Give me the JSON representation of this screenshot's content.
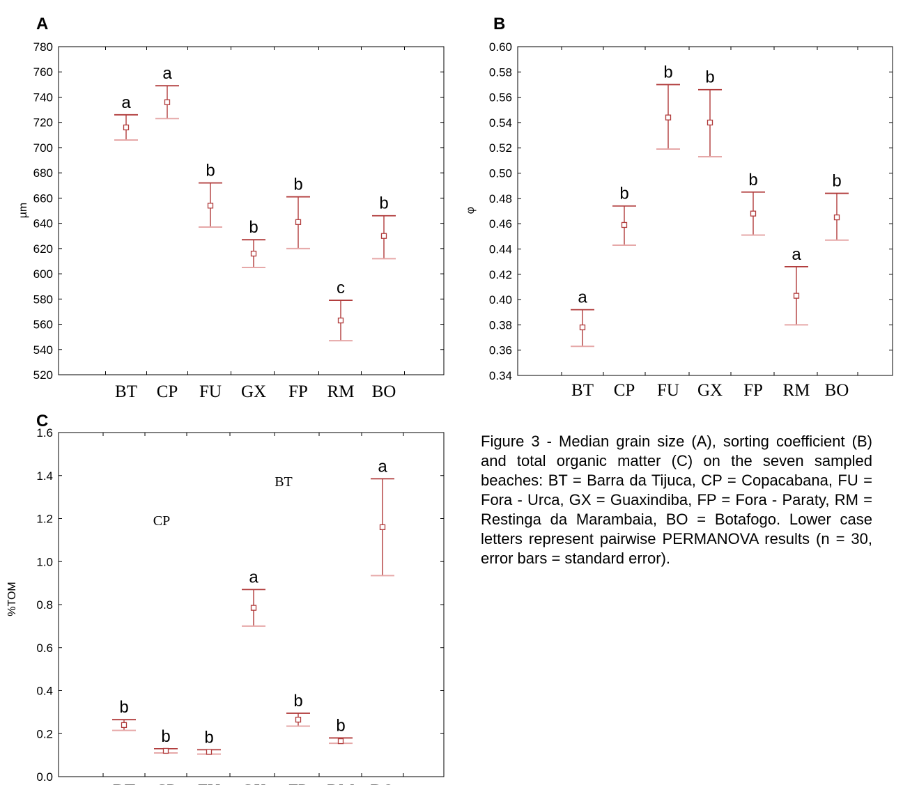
{
  "colors": {
    "marker": "#b03a3a",
    "cap_dark": "#b03a3a",
    "cap_light": "#e6a8a8",
    "axis": "#000000"
  },
  "chart_data": [
    {
      "id": "A",
      "panel_label": "A",
      "type": "scatter",
      "error_bars": true,
      "ylabel": "µm",
      "xlabel": "",
      "ylim": [
        520,
        780
      ],
      "ytick_step": 20,
      "ytick_decimals": 0,
      "categories": [
        "BT",
        "CP",
        "FU",
        "GX",
        "FP",
        "RM",
        "BO"
      ],
      "values": [
        716,
        736,
        654,
        616,
        641,
        563,
        630
      ],
      "upper": [
        726,
        749,
        672,
        627,
        661,
        579,
        646
      ],
      "lower": [
        706,
        723,
        637,
        605,
        620,
        547,
        612
      ],
      "letters": [
        "a",
        "a",
        "b",
        "b",
        "b",
        "c",
        "b"
      ]
    },
    {
      "id": "B",
      "panel_label": "B",
      "type": "scatter",
      "error_bars": true,
      "ylabel": "φ",
      "xlabel": "",
      "ylim": [
        0.34,
        0.6
      ],
      "ytick_step": 0.02,
      "ytick_decimals": 2,
      "categories": [
        "BT",
        "CP",
        "FU",
        "GX",
        "FP",
        "RM",
        "BO"
      ],
      "values": [
        0.378,
        0.459,
        0.544,
        0.54,
        0.468,
        0.403,
        0.465
      ],
      "upper": [
        0.392,
        0.474,
        0.57,
        0.566,
        0.485,
        0.426,
        0.484
      ],
      "lower": [
        0.363,
        0.443,
        0.519,
        0.513,
        0.451,
        0.38,
        0.447
      ],
      "letters": [
        "a",
        "b",
        "b",
        "b",
        "b",
        "a",
        "b"
      ]
    },
    {
      "id": "C",
      "panel_label": "C",
      "type": "scatter",
      "error_bars": true,
      "ylabel": "%TOM",
      "xlabel": "",
      "ylim": [
        0.0,
        1.6
      ],
      "ytick_step": 0.2,
      "ytick_decimals": 1,
      "categories": [
        "BT",
        "CP",
        "FU",
        "GX",
        "FP",
        "RM",
        "BO"
      ],
      "values": [
        0.24,
        0.12,
        0.115,
        0.785,
        0.265,
        0.165,
        1.16
      ],
      "upper": [
        0.265,
        0.13,
        0.125,
        0.87,
        0.295,
        0.18,
        1.385
      ],
      "lower": [
        0.215,
        0.11,
        0.105,
        0.7,
        0.235,
        0.155,
        0.935
      ],
      "letters": [
        "b",
        "b",
        "b",
        "a",
        "b",
        "b",
        "a"
      ],
      "stray_labels": [
        "CP",
        "BT"
      ]
    }
  ],
  "caption": "Figure 3 - Median grain size (A), sorting coefficient (B) and total organic matter (C) on the seven sampled beaches: BT = Barra da Tijuca, CP = Copacabana, FU = Fora - Urca, GX = Guaxindiba, FP = Fora - Paraty, RM = Restinga da Marambaia, BO = Botafogo. Lower case letters represent pairwise PERMANOVA results (n = 30, error bars = standard error)."
}
